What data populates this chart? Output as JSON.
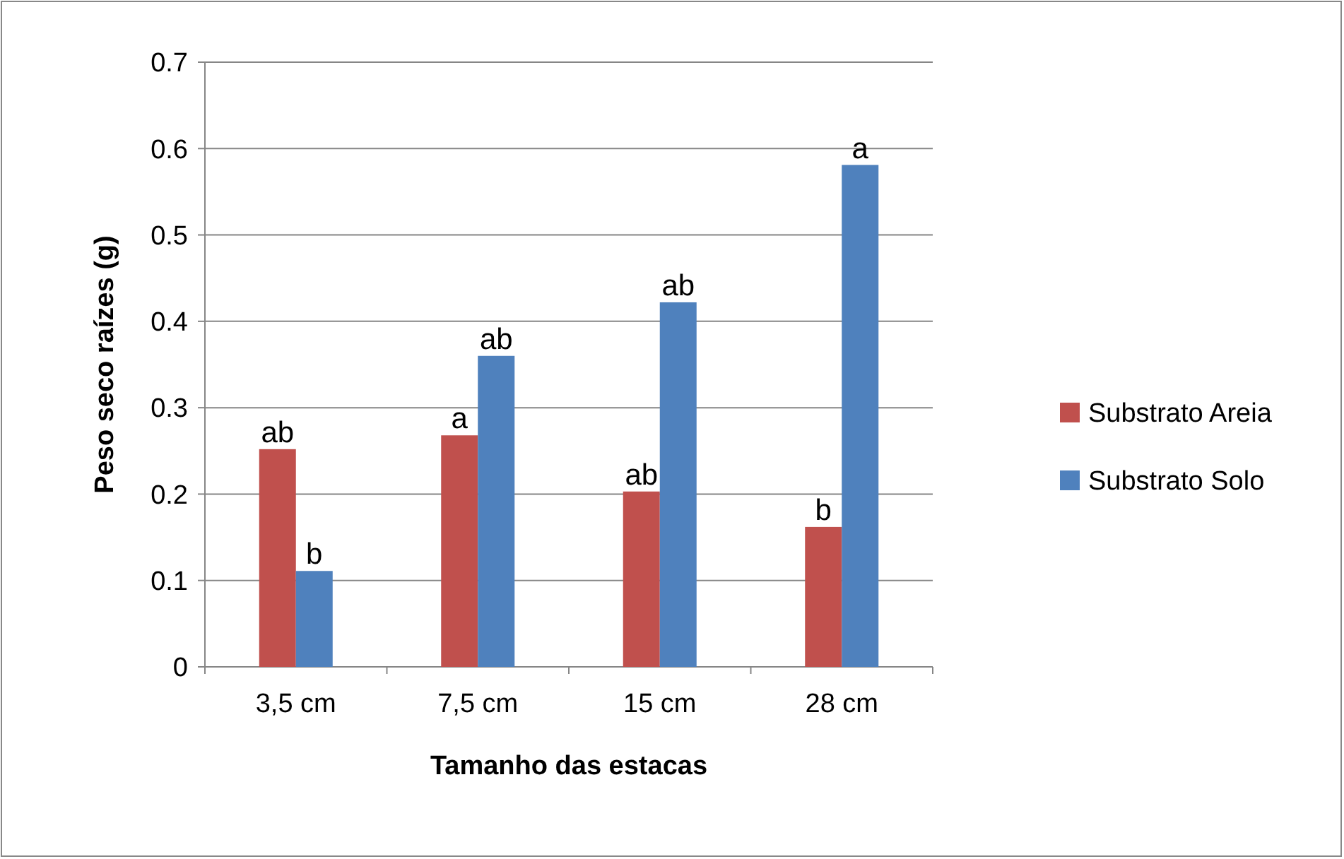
{
  "chart_data": {
    "type": "bar",
    "xlabel": "Tamanho das estacas",
    "ylabel": "Peso seco raízes (g)",
    "categories": [
      "3,5 cm",
      "7,5 cm",
      "15 cm",
      "28 cm"
    ],
    "series": [
      {
        "name": "Substrato Areia",
        "color": "#c0504d",
        "values": [
          0.252,
          0.268,
          0.203,
          0.162
        ]
      },
      {
        "name": "Substrato Solo",
        "color": "#4f81bd",
        "values": [
          0.111,
          0.36,
          0.422,
          0.581
        ]
      }
    ],
    "ylim": [
      0,
      0.7
    ],
    "yticks": [
      {
        "value": 0,
        "label": "0"
      },
      0.1,
      0.2,
      0.3,
      0.4,
      0.5,
      0.6,
      0.7
    ],
    "grid": "y",
    "legend": "right",
    "annotations": [
      {
        "text": "ab",
        "y": 0.252
      },
      {
        "text": "b",
        "y": 0.111
      },
      {
        "text": "a",
        "y": 0.268
      },
      {
        "text": "ab",
        "y": 0.36
      },
      {
        "text": "ab",
        "y": 0.203
      },
      {
        "text": "ab",
        "y": 0.422
      },
      {
        "text": "b",
        "y": 0.162
      },
      {
        "text": "a",
        "y": 0.581
      }
    ]
  }
}
